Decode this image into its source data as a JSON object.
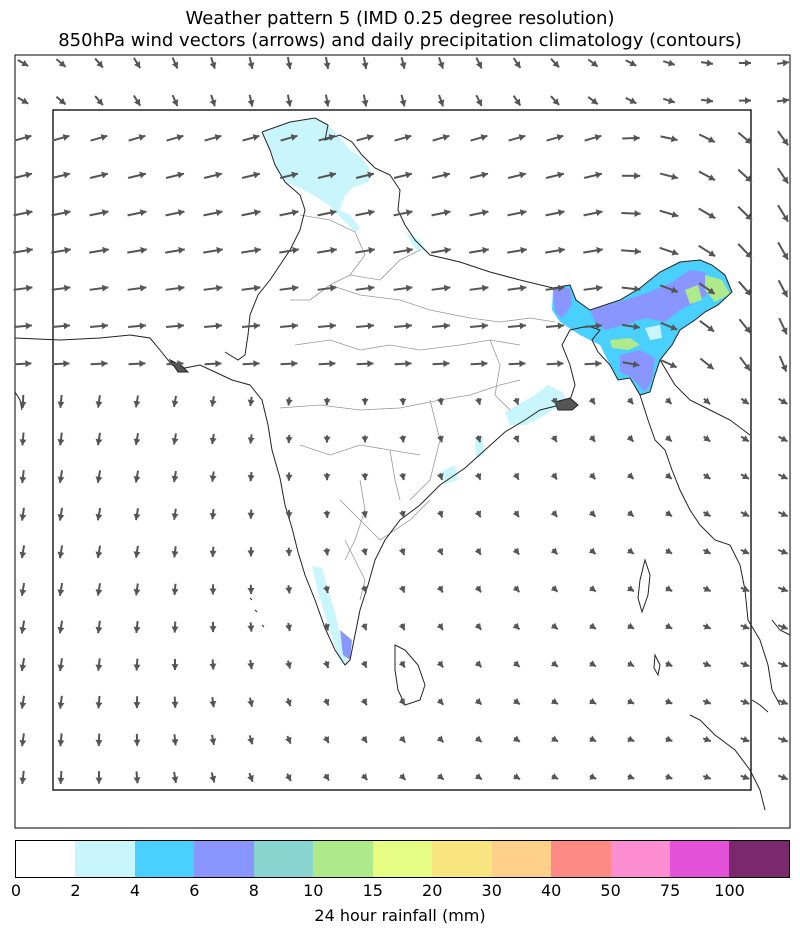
{
  "title": {
    "line1": "Weather pattern 5 (IMD 0.25 degree resolution)",
    "line2": "850hPa wind vectors (arrows) and daily precipitation climatology (contours)"
  },
  "colorbar": {
    "label": "24 hour rainfall (mm)",
    "ticks": [
      "0",
      "2",
      "4",
      "6",
      "8",
      "10",
      "15",
      "20",
      "30",
      "40",
      "50",
      "75",
      "100"
    ],
    "colors": [
      "#ffffff",
      "#c9f6fd",
      "#4ad0ff",
      "#8a96ff",
      "#88d4cf",
      "#afea8a",
      "#e8fd84",
      "#f8e57f",
      "#fed08a",
      "#fe8a86",
      "#fe8ed2",
      "#e352d8",
      "#7a2a6c"
    ]
  },
  "colors": {
    "arrow": "#555555",
    "coast": "#222222",
    "state_border": "#999999"
  }
}
